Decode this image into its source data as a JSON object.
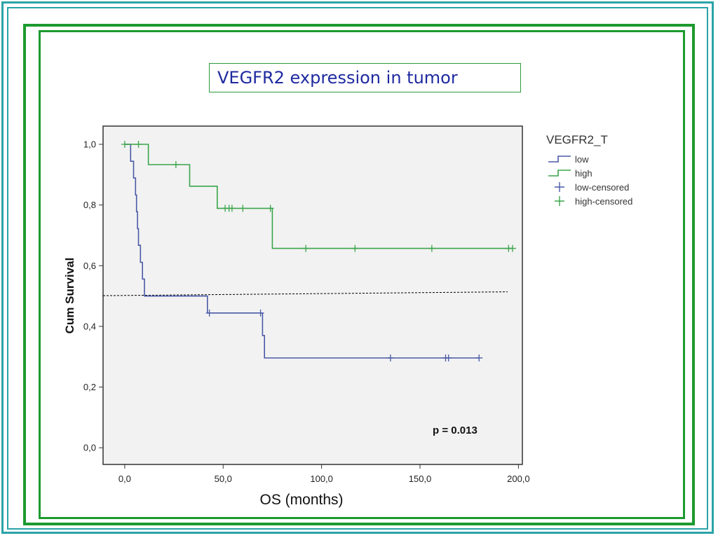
{
  "title": "VEGFR2 expression in tumor",
  "chart_data": {
    "type": "line",
    "step": true,
    "xlabel": "OS (months)",
    "ylabel": "Cum Survival",
    "xlim": [
      -11,
      202
    ],
    "ylim": [
      -0.055,
      1.06
    ],
    "x_ticks": [
      0,
      50,
      100,
      150,
      200
    ],
    "x_tick_labels": [
      "0,0",
      "50,0",
      "100,0",
      "150,0",
      "200,0"
    ],
    "y_ticks": [
      0,
      0.2,
      0.4,
      0.6,
      0.8,
      1.0
    ],
    "y_tick_labels": [
      "0,0",
      "0,2",
      "0,4",
      "0,6",
      "0,8",
      "1,0"
    ],
    "grid": false,
    "plot_background": "#f2f2f2",
    "annotation": "p = 0.013",
    "reference_line": {
      "y": 0.5,
      "style": "dashed"
    },
    "legend": {
      "title": "VEGFR2_T",
      "position": "right",
      "entries": [
        "low",
        "high",
        "low-censored",
        "high-censored"
      ]
    },
    "series": [
      {
        "name": "low",
        "color": "#4a5aa6",
        "points": [
          [
            0,
            1.0
          ],
          [
            3,
            1.0
          ],
          [
            3,
            0.944
          ],
          [
            4.5,
            0.944
          ],
          [
            4.5,
            0.889
          ],
          [
            5.5,
            0.889
          ],
          [
            5.5,
            0.833
          ],
          [
            6,
            0.833
          ],
          [
            6,
            0.778
          ],
          [
            6.5,
            0.778
          ],
          [
            6.5,
            0.722
          ],
          [
            7,
            0.722
          ],
          [
            7,
            0.667
          ],
          [
            8,
            0.667
          ],
          [
            8,
            0.611
          ],
          [
            9,
            0.611
          ],
          [
            9,
            0.556
          ],
          [
            10,
            0.556
          ],
          [
            10,
            0.5
          ],
          [
            42,
            0.5
          ],
          [
            42,
            0.444
          ],
          [
            70,
            0.444
          ],
          [
            70,
            0.37
          ],
          [
            71,
            0.37
          ],
          [
            71,
            0.296
          ],
          [
            180,
            0.296
          ]
        ],
        "censored": [
          [
            43,
            0.444
          ],
          [
            69,
            0.444
          ],
          [
            135,
            0.296
          ],
          [
            163,
            0.296
          ],
          [
            164.5,
            0.296
          ],
          [
            180,
            0.296
          ]
        ]
      },
      {
        "name": "high",
        "color": "#3aa54a",
        "points": [
          [
            0,
            1.0
          ],
          [
            12,
            1.0
          ],
          [
            12,
            0.933
          ],
          [
            33,
            0.933
          ],
          [
            33,
            0.862
          ],
          [
            47,
            0.862
          ],
          [
            47,
            0.789
          ],
          [
            75,
            0.789
          ],
          [
            75,
            0.657
          ],
          [
            197,
            0.657
          ]
        ],
        "censored": [
          [
            0,
            1.0
          ],
          [
            7,
            1.0
          ],
          [
            26,
            0.933
          ],
          [
            51,
            0.789
          ],
          [
            53,
            0.789
          ],
          [
            54.5,
            0.789
          ],
          [
            60,
            0.789
          ],
          [
            74,
            0.789
          ],
          [
            92,
            0.657
          ],
          [
            117,
            0.657
          ],
          [
            156,
            0.657
          ],
          [
            195,
            0.657
          ],
          [
            197,
            0.657
          ]
        ]
      }
    ]
  }
}
